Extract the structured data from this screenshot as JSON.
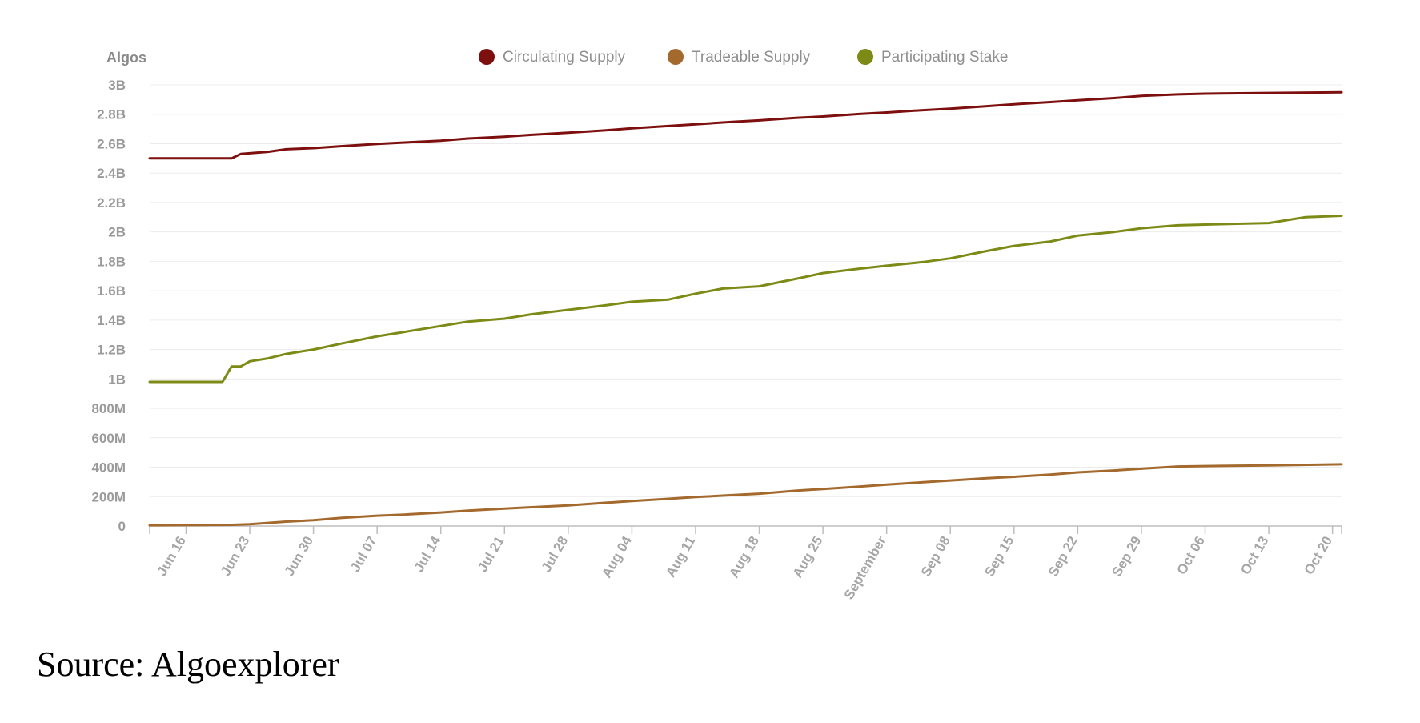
{
  "chart_data": {
    "type": "line",
    "ylabel": "Algos",
    "ylim": [
      0,
      3000000000
    ],
    "y_ticks": [
      {
        "value": 0,
        "label": "0"
      },
      {
        "value": 200000000,
        "label": "200M"
      },
      {
        "value": 400000000,
        "label": "400M"
      },
      {
        "value": 600000000,
        "label": "600M"
      },
      {
        "value": 800000000,
        "label": "800M"
      },
      {
        "value": 1000000000,
        "label": "1B"
      },
      {
        "value": 1200000000,
        "label": "1.2B"
      },
      {
        "value": 1400000000,
        "label": "1.4B"
      },
      {
        "value": 1600000000,
        "label": "1.6B"
      },
      {
        "value": 1800000000,
        "label": "1.8B"
      },
      {
        "value": 2000000000,
        "label": "2B"
      },
      {
        "value": 2200000000,
        "label": "2.2B"
      },
      {
        "value": 2400000000,
        "label": "2.4B"
      },
      {
        "value": 2600000000,
        "label": "2.6B"
      },
      {
        "value": 2800000000,
        "label": "2.8B"
      },
      {
        "value": 3000000000,
        "label": "3B"
      }
    ],
    "xlim": [
      "2019-06-12",
      "2019-10-21"
    ],
    "x_ticks": [
      {
        "date": "2019-06-16",
        "label": "Jun 16"
      },
      {
        "date": "2019-06-23",
        "label": "Jun 23"
      },
      {
        "date": "2019-06-30",
        "label": "Jun 30"
      },
      {
        "date": "2019-07-07",
        "label": "Jul 07"
      },
      {
        "date": "2019-07-14",
        "label": "Jul 14"
      },
      {
        "date": "2019-07-21",
        "label": "Jul 21"
      },
      {
        "date": "2019-07-28",
        "label": "Jul 28"
      },
      {
        "date": "2019-08-04",
        "label": "Aug 04"
      },
      {
        "date": "2019-08-11",
        "label": "Aug 11"
      },
      {
        "date": "2019-08-18",
        "label": "Aug 18"
      },
      {
        "date": "2019-08-25",
        "label": "Aug 25"
      },
      {
        "date": "2019-09-01",
        "label": "September"
      },
      {
        "date": "2019-09-08",
        "label": "Sep 08"
      },
      {
        "date": "2019-09-15",
        "label": "Sep 15"
      },
      {
        "date": "2019-09-22",
        "label": "Sep 22"
      },
      {
        "date": "2019-09-29",
        "label": "Sep 29"
      },
      {
        "date": "2019-10-06",
        "label": "Oct 06"
      },
      {
        "date": "2019-10-13",
        "label": "Oct 13"
      },
      {
        "date": "2019-10-20",
        "label": "Oct 20"
      }
    ],
    "grid": true,
    "legend_position": "top",
    "series": [
      {
        "name": "Circulating Supply",
        "color": "#7d0f0f",
        "points": [
          [
            "2019-06-12",
            2500000000
          ],
          [
            "2019-06-21",
            2500000000
          ],
          [
            "2019-06-22",
            2530000000
          ],
          [
            "2019-06-25",
            2545000000
          ],
          [
            "2019-06-27",
            2562000000
          ],
          [
            "2019-06-30",
            2570000000
          ],
          [
            "2019-07-03",
            2583000000
          ],
          [
            "2019-07-07",
            2598000000
          ],
          [
            "2019-07-10",
            2608000000
          ],
          [
            "2019-07-14",
            2620000000
          ],
          [
            "2019-07-17",
            2635000000
          ],
          [
            "2019-07-21",
            2648000000
          ],
          [
            "2019-07-24",
            2660000000
          ],
          [
            "2019-07-28",
            2675000000
          ],
          [
            "2019-08-01",
            2690000000
          ],
          [
            "2019-08-04",
            2705000000
          ],
          [
            "2019-08-08",
            2720000000
          ],
          [
            "2019-08-11",
            2732000000
          ],
          [
            "2019-08-15",
            2748000000
          ],
          [
            "2019-08-18",
            2758000000
          ],
          [
            "2019-08-22",
            2775000000
          ],
          [
            "2019-08-25",
            2785000000
          ],
          [
            "2019-08-29",
            2802000000
          ],
          [
            "2019-09-01",
            2812000000
          ],
          [
            "2019-09-05",
            2828000000
          ],
          [
            "2019-09-08",
            2838000000
          ],
          [
            "2019-09-12",
            2855000000
          ],
          [
            "2019-09-15",
            2868000000
          ],
          [
            "2019-09-19",
            2883000000
          ],
          [
            "2019-09-22",
            2895000000
          ],
          [
            "2019-09-26",
            2910000000
          ],
          [
            "2019-09-29",
            2925000000
          ],
          [
            "2019-10-03",
            2935000000
          ],
          [
            "2019-10-06",
            2940000000
          ],
          [
            "2019-10-13",
            2945000000
          ],
          [
            "2019-10-21",
            2950000000
          ]
        ]
      },
      {
        "name": "Tradeable Supply",
        "color": "#a4692d",
        "points": [
          [
            "2019-06-12",
            5000000
          ],
          [
            "2019-06-21",
            8000000
          ],
          [
            "2019-06-23",
            12000000
          ],
          [
            "2019-06-27",
            30000000
          ],
          [
            "2019-06-30",
            40000000
          ],
          [
            "2019-07-03",
            55000000
          ],
          [
            "2019-07-07",
            70000000
          ],
          [
            "2019-07-10",
            78000000
          ],
          [
            "2019-07-14",
            92000000
          ],
          [
            "2019-07-17",
            105000000
          ],
          [
            "2019-07-21",
            118000000
          ],
          [
            "2019-07-24",
            128000000
          ],
          [
            "2019-07-28",
            140000000
          ],
          [
            "2019-08-01",
            158000000
          ],
          [
            "2019-08-04",
            170000000
          ],
          [
            "2019-08-08",
            185000000
          ],
          [
            "2019-08-11",
            197000000
          ],
          [
            "2019-08-15",
            210000000
          ],
          [
            "2019-08-18",
            220000000
          ],
          [
            "2019-08-22",
            240000000
          ],
          [
            "2019-08-25",
            252000000
          ],
          [
            "2019-08-29",
            268000000
          ],
          [
            "2019-09-01",
            282000000
          ],
          [
            "2019-09-05",
            298000000
          ],
          [
            "2019-09-08",
            310000000
          ],
          [
            "2019-09-12",
            325000000
          ],
          [
            "2019-09-15",
            335000000
          ],
          [
            "2019-09-19",
            350000000
          ],
          [
            "2019-09-22",
            365000000
          ],
          [
            "2019-09-26",
            378000000
          ],
          [
            "2019-09-29",
            390000000
          ],
          [
            "2019-10-03",
            405000000
          ],
          [
            "2019-10-06",
            408000000
          ],
          [
            "2019-10-13",
            412000000
          ],
          [
            "2019-10-21",
            420000000
          ]
        ]
      },
      {
        "name": "Participating Stake",
        "color": "#7d8a16",
        "points": [
          [
            "2019-06-12",
            980000000
          ],
          [
            "2019-06-20",
            980000000
          ],
          [
            "2019-06-21",
            1085000000
          ],
          [
            "2019-06-22",
            1085000000
          ],
          [
            "2019-06-23",
            1120000000
          ],
          [
            "2019-06-25",
            1140000000
          ],
          [
            "2019-06-27",
            1170000000
          ],
          [
            "2019-06-30",
            1200000000
          ],
          [
            "2019-07-03",
            1240000000
          ],
          [
            "2019-07-07",
            1290000000
          ],
          [
            "2019-07-10",
            1320000000
          ],
          [
            "2019-07-14",
            1360000000
          ],
          [
            "2019-07-17",
            1390000000
          ],
          [
            "2019-07-21",
            1410000000
          ],
          [
            "2019-07-24",
            1440000000
          ],
          [
            "2019-07-28",
            1470000000
          ],
          [
            "2019-08-01",
            1500000000
          ],
          [
            "2019-08-04",
            1525000000
          ],
          [
            "2019-08-08",
            1540000000
          ],
          [
            "2019-08-11",
            1580000000
          ],
          [
            "2019-08-14",
            1615000000
          ],
          [
            "2019-08-18",
            1630000000
          ],
          [
            "2019-08-22",
            1680000000
          ],
          [
            "2019-08-25",
            1720000000
          ],
          [
            "2019-08-29",
            1750000000
          ],
          [
            "2019-09-01",
            1770000000
          ],
          [
            "2019-09-05",
            1795000000
          ],
          [
            "2019-09-08",
            1820000000
          ],
          [
            "2019-09-12",
            1870000000
          ],
          [
            "2019-09-15",
            1905000000
          ],
          [
            "2019-09-19",
            1935000000
          ],
          [
            "2019-09-22",
            1975000000
          ],
          [
            "2019-09-26",
            2000000000
          ],
          [
            "2019-09-29",
            2025000000
          ],
          [
            "2019-10-03",
            2045000000
          ],
          [
            "2019-10-06",
            2050000000
          ],
          [
            "2019-10-13",
            2060000000
          ],
          [
            "2019-10-16",
            2090000000
          ],
          [
            "2019-10-17",
            2100000000
          ],
          [
            "2019-10-21",
            2110000000
          ]
        ]
      }
    ]
  },
  "source_note": "Source: Algoexplorer"
}
